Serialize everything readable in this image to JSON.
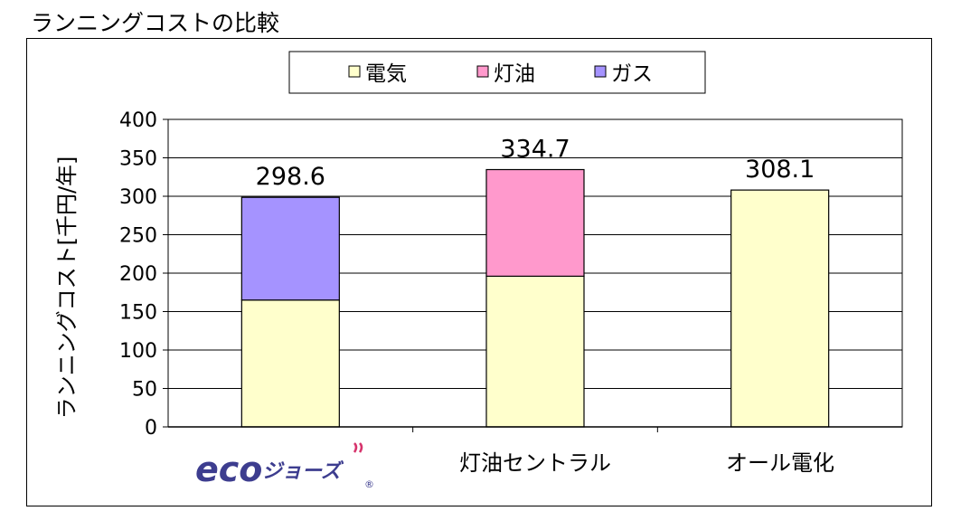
{
  "chart_data": {
    "type": "bar",
    "stacked": true,
    "title": "ランニングコストの比較",
    "ylabel": "ランニングコスト[千円/年]",
    "xlabel": "",
    "ylim": [
      0,
      400
    ],
    "yticks": [
      "0",
      "50",
      "100",
      "150",
      "200",
      "250",
      "300",
      "350",
      "400"
    ],
    "grid": true,
    "legend_position": "top",
    "categories": [
      "エコジョーズ",
      "灯油セントラル",
      "オール電化"
    ],
    "logo_text": {
      "main": "eco",
      "sub": "ジョーズ",
      "mark": "®"
    },
    "series": [
      {
        "name": "電気",
        "color": "#FFFFCC",
        "values": [
          165,
          196,
          308.1
        ]
      },
      {
        "name": "灯油",
        "color": "#FF99CC",
        "values": [
          0,
          138.7,
          0
        ]
      },
      {
        "name": "ガス",
        "color": "#A593FF",
        "values": [
          133.6,
          0,
          0
        ]
      }
    ],
    "totals": [
      "298.6",
      "334.7",
      "308.1"
    ]
  }
}
